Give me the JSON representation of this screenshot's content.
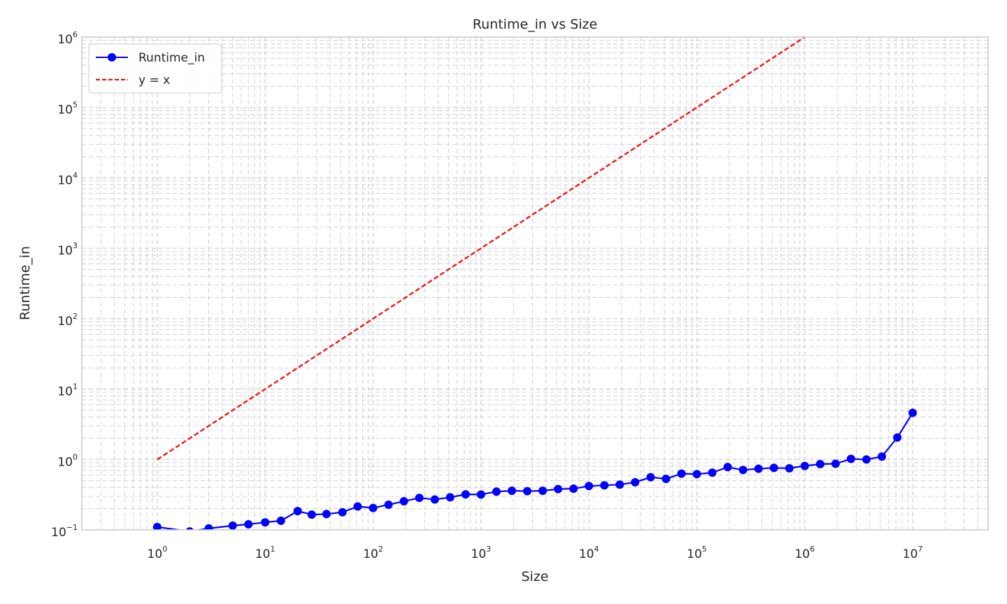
{
  "chart_data": {
    "type": "line",
    "title": "Runtime_in vs Size",
    "xlabel": "Size",
    "ylabel": "Runtime_in",
    "xscale": "log",
    "yscale": "log",
    "xlim": [
      0.2,
      50000000
    ],
    "ylim": [
      0.1,
      1000000
    ],
    "grid": true,
    "legend_position": "top-left",
    "x_ticks": [
      {
        "base": "10",
        "exp": "0",
        "value": 1
      },
      {
        "base": "10",
        "exp": "1",
        "value": 10
      },
      {
        "base": "10",
        "exp": "2",
        "value": 100
      },
      {
        "base": "10",
        "exp": "3",
        "value": 1000
      },
      {
        "base": "10",
        "exp": "4",
        "value": 10000
      },
      {
        "base": "10",
        "exp": "5",
        "value": 100000
      },
      {
        "base": "10",
        "exp": "6",
        "value": 1000000
      },
      {
        "base": "10",
        "exp": "7",
        "value": 10000000
      }
    ],
    "y_ticks": [
      {
        "base": "10",
        "exp": "−1",
        "value": 0.1
      },
      {
        "base": "10",
        "exp": "0",
        "value": 1
      },
      {
        "base": "10",
        "exp": "1",
        "value": 10
      },
      {
        "base": "10",
        "exp": "2",
        "value": 100
      },
      {
        "base": "10",
        "exp": "3",
        "value": 1000
      },
      {
        "base": "10",
        "exp": "4",
        "value": 10000
      },
      {
        "base": "10",
        "exp": "5",
        "value": 100000
      },
      {
        "base": "10",
        "exp": "6",
        "value": 1000000
      }
    ],
    "series": [
      {
        "name": "Runtime_in",
        "color": "#0000ff",
        "style": "solid",
        "marker": "circle",
        "x": [
          1,
          2,
          3,
          5,
          7,
          10,
          14,
          20,
          27,
          37,
          52,
          72,
          100,
          139,
          193,
          268,
          373,
          518,
          720,
          1000,
          1390,
          1930,
          2680,
          3730,
          5180,
          7200,
          10000,
          13900,
          19300,
          26800,
          37300,
          51800,
          72000,
          100000,
          139000,
          193000,
          268000,
          373000,
          518000,
          720000,
          1000000,
          1390000,
          1930000,
          2680000,
          3730000,
          5180000,
          7200000,
          10000000
        ],
        "y": [
          0.11,
          0.095,
          0.105,
          0.115,
          0.12,
          0.128,
          0.135,
          0.185,
          0.165,
          0.168,
          0.178,
          0.215,
          0.205,
          0.228,
          0.255,
          0.285,
          0.27,
          0.29,
          0.32,
          0.318,
          0.35,
          0.36,
          0.355,
          0.36,
          0.38,
          0.385,
          0.42,
          0.43,
          0.44,
          0.475,
          0.56,
          0.53,
          0.63,
          0.62,
          0.65,
          0.78,
          0.71,
          0.74,
          0.76,
          0.75,
          0.81,
          0.86,
          0.87,
          1.02,
          1.0,
          1.1,
          2.05,
          4.6
        ]
      },
      {
        "name": "y = x",
        "color": "#ff0000",
        "style": "dashed",
        "marker": "none",
        "x": [
          1,
          10000000
        ],
        "y": [
          1,
          10000000
        ]
      }
    ]
  }
}
